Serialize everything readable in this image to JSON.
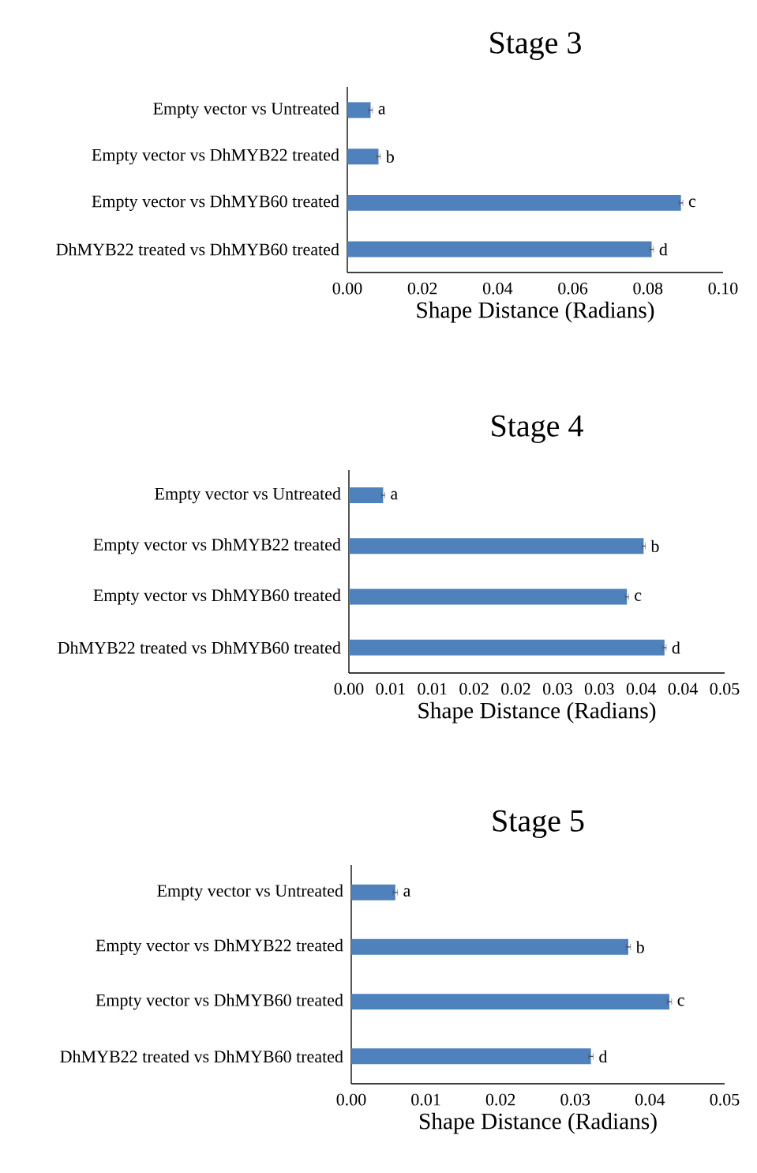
{
  "chart_data": [
    {
      "type": "bar",
      "orientation": "horizontal",
      "title": "Stage 3",
      "xlabel": "Shape Distance (Radians)",
      "categories": [
        "Empty vector vs Untreated",
        "Empty vector vs DhMYB22 treated",
        "Empty vector vs DhMYB60 treated",
        "DhMYB22 treated vs DhMYB60 treated"
      ],
      "values": [
        0.0062,
        0.0083,
        0.0888,
        0.081
      ],
      "errors": [
        0.0005,
        0.0005,
        0.0005,
        0.0005
      ],
      "value_labels": [
        "a",
        "b",
        "c",
        "d"
      ],
      "color": "#4f81bd",
      "xlim": [
        0,
        0.1
      ],
      "xticks": [
        {
          "value": 0,
          "label": "0.00"
        },
        {
          "value": 0.02,
          "label": "0.02"
        },
        {
          "value": 0.04,
          "label": "0.04"
        },
        {
          "value": 0.06,
          "label": "0.06"
        },
        {
          "value": 0.08,
          "label": "0.08"
        },
        {
          "value": 0.1,
          "label": "0.10"
        }
      ]
    },
    {
      "type": "bar",
      "orientation": "horizontal",
      "title": "Stage 4",
      "xlabel": "Shape Distance (Radians)",
      "categories": [
        "Empty vector vs Untreated",
        "Empty vector vs DhMYB22 treated",
        "Empty vector vs DhMYB60 treated",
        "DhMYB22 treated vs DhMYB60 treated"
      ],
      "values": [
        0.0041,
        0.0353,
        0.0333,
        0.0378
      ],
      "errors": [
        0.0002,
        0.0002,
        0.0002,
        0.0002
      ],
      "value_labels": [
        "a",
        "b",
        "c",
        "d"
      ],
      "color": "#4f81bd",
      "xlim": [
        0,
        0.045
      ],
      "xticks": [
        {
          "value": 0,
          "label": "0.00"
        },
        {
          "value": 0.005,
          "label": "0.01"
        },
        {
          "value": 0.01,
          "label": "0.01"
        },
        {
          "value": 0.015,
          "label": "0.02"
        },
        {
          "value": 0.02,
          "label": "0.02"
        },
        {
          "value": 0.025,
          "label": "0.03"
        },
        {
          "value": 0.03,
          "label": "0.03"
        },
        {
          "value": 0.035,
          "label": "0.04"
        },
        {
          "value": 0.04,
          "label": "0.04"
        },
        {
          "value": 0.045,
          "label": "0.05"
        }
      ]
    },
    {
      "type": "bar",
      "orientation": "horizontal",
      "title": "Stage 5",
      "xlabel": "Shape Distance (Radians)",
      "categories": [
        "Empty vector vs Untreated",
        "Empty vector vs DhMYB22 treated",
        "Empty vector vs DhMYB60 treated",
        "DhMYB22 treated vs DhMYB60 treated"
      ],
      "values": [
        0.0059,
        0.0371,
        0.0426,
        0.0321
      ],
      "errors": [
        0.0003,
        0.0003,
        0.0003,
        0.0003
      ],
      "value_labels": [
        "a",
        "b",
        "c",
        "d"
      ],
      "color": "#4f81bd",
      "xlim": [
        0,
        0.05
      ],
      "xticks": [
        {
          "value": 0,
          "label": "0.00"
        },
        {
          "value": 0.01,
          "label": "0.01"
        },
        {
          "value": 0.02,
          "label": "0.02"
        },
        {
          "value": 0.03,
          "label": "0.03"
        },
        {
          "value": 0.04,
          "label": "0.04"
        },
        {
          "value": 0.05,
          "label": "0.05"
        }
      ]
    }
  ]
}
